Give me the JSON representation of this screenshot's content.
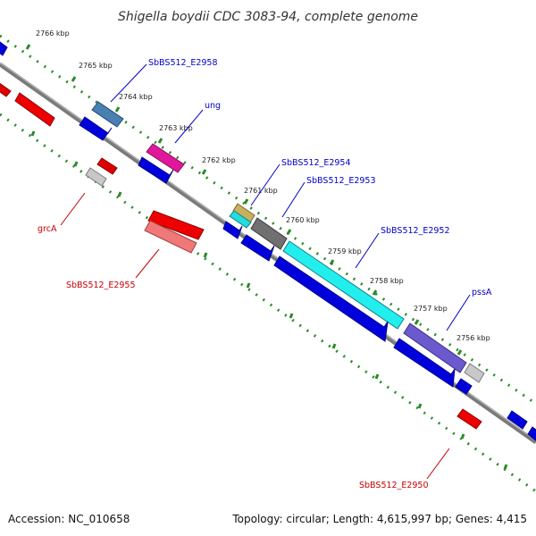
{
  "title": "Shigella boydii CDC 3083-94, complete genome",
  "footer": {
    "accession": "Accession: NC_010658",
    "topology": "Topology: circular; Length: 4,615,997 bp; Genes: 4,415"
  },
  "colors": {
    "forward_label": "#0000c8",
    "reverse_label": "#c80000",
    "ruler_tick": "#2a8a2a",
    "backbone": "#7a7a7a"
  },
  "ruler_labels": [
    "2766 kbp",
    "2765 kbp",
    "2764 kbp",
    "2763 kbp",
    "2762 kbp",
    "2761 kbp",
    "2760 kbp",
    "2759 kbp",
    "2758 kbp",
    "2757 kbp",
    "2756 kbp"
  ],
  "gene_labels": {
    "sbbs512_e2958": "SbBS512_E2958",
    "ung": "ung",
    "sbbs512_e2954": "SbBS512_E2954",
    "sbbs512_e2953": "SbBS512_E2953",
    "sbbs512_e2952": "SbBS512_E2952",
    "psss": "pssA",
    "grca": "grcA",
    "sbbs512_e2955": "SbBS512_E2955",
    "sbbs512_e2950": "SbBS512_E2950"
  }
}
